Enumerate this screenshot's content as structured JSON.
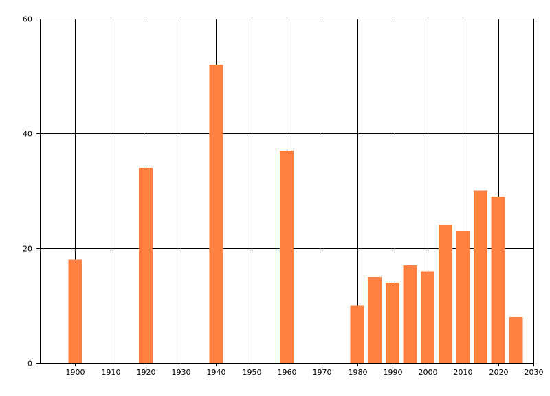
{
  "chart_data": {
    "type": "bar",
    "title": "",
    "xlabel": "",
    "ylabel": "",
    "x": [
      1900,
      1920,
      1940,
      1960,
      1980,
      1985,
      1990,
      1995,
      2000,
      2005,
      2010,
      2015,
      2020,
      2025
    ],
    "values": [
      18,
      34,
      52,
      37,
      10,
      15,
      14,
      17,
      16,
      24,
      23,
      30,
      29,
      8
    ],
    "xlim": [
      1890,
      2030
    ],
    "ylim": [
      0,
      60
    ],
    "x_ticks": [
      1900,
      1910,
      1920,
      1930,
      1940,
      1950,
      1960,
      1970,
      1980,
      1990,
      2000,
      2010,
      2020,
      2030
    ],
    "y_ticks": [
      0,
      20,
      40,
      60
    ],
    "grid": true,
    "bar_color": "#ff8040"
  }
}
